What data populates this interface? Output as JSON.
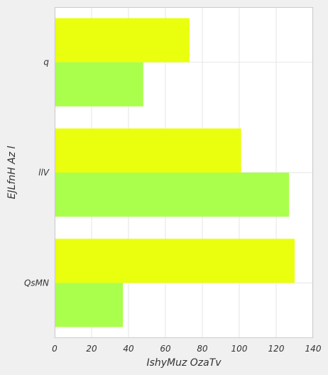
{
  "chart_data": {
    "type": "bar",
    "orientation": "horizontal",
    "categories": [
      "q",
      "llV",
      "QsMN"
    ],
    "series": [
      {
        "values": [
          73,
          101,
          130
        ],
        "color": "#eaff0d"
      },
      {
        "values": [
          48,
          127,
          37
        ],
        "color": "#aaff4d"
      }
    ],
    "xlabel": "IshyMuz OzaTv",
    "ylabel": "EJLfnH Az l",
    "xlim": [
      0,
      140
    ],
    "xticks": [
      0,
      20,
      40,
      60,
      80,
      100,
      120,
      140
    ],
    "grid": true,
    "legend": "none"
  },
  "colors": {
    "background": "#f0f0f0",
    "plot_background": "#ffffff",
    "grid": "#e6e6e6",
    "frame": "#cccccc",
    "text": "#333333"
  }
}
